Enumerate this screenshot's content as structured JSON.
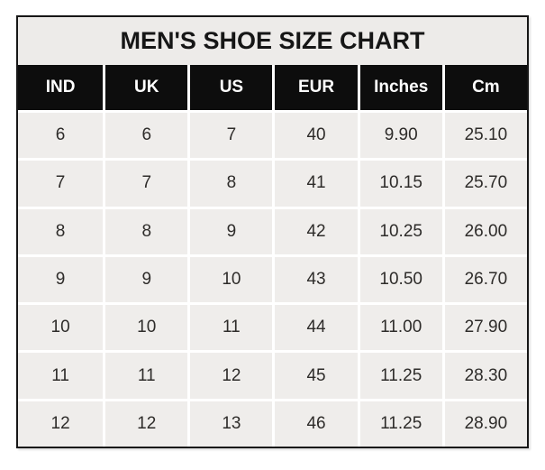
{
  "title": "MEN'S SHOE SIZE CHART",
  "chart_data": {
    "type": "table",
    "title": "MEN'S SHOE SIZE CHART",
    "columns": [
      "IND",
      "UK",
      "US",
      "EUR",
      "Inches",
      "Cm"
    ],
    "rows": [
      [
        "6",
        "6",
        "7",
        "40",
        "9.90",
        "25.10"
      ],
      [
        "7",
        "7",
        "8",
        "41",
        "10.15",
        "25.70"
      ],
      [
        "8",
        "8",
        "9",
        "42",
        "10.25",
        "26.00"
      ],
      [
        "9",
        "9",
        "10",
        "43",
        "10.50",
        "26.70"
      ],
      [
        "10",
        "10",
        "11",
        "44",
        "11.00",
        "27.90"
      ],
      [
        "11",
        "11",
        "12",
        "45",
        "11.25",
        "28.30"
      ],
      [
        "12",
        "12",
        "13",
        "46",
        "11.25",
        "28.90"
      ]
    ],
    "legend": "none",
    "grid": "white separators between gray cells"
  },
  "colors": {
    "frame_border": "#161616",
    "title_bg": "#edebe9",
    "title_text": "#161616",
    "header_bg": "#0d0d0d",
    "header_text": "#ffffff",
    "cell_bg": "#efedeb",
    "cell_text": "#2e2c2a",
    "separator": "#ffffff",
    "page_bg": "#ffffff"
  }
}
